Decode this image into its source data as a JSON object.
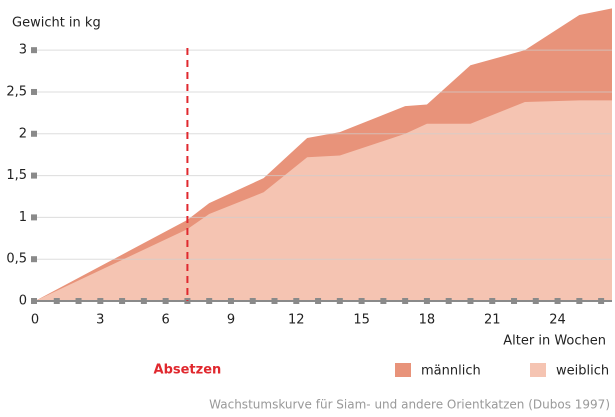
{
  "chart_data": {
    "type": "area",
    "y_label": "Gewicht in kg",
    "x_label": "Alter in Wochen",
    "source": "Wachstumskurve für Siam- und andere Orientkatzen (Dubos 1997)",
    "x": [
      0,
      7,
      8,
      10.5,
      12.5,
      14,
      17,
      18,
      20,
      22.5,
      25,
      26.5
    ],
    "series": [
      {
        "name": "männlich",
        "color": "#e8937a",
        "values": [
          0,
          0.97,
          1.17,
          1.47,
          1.95,
          2.02,
          2.33,
          2.35,
          2.82,
          3.0,
          3.42,
          3.5
        ]
      },
      {
        "name": "weiblich",
        "color": "#f5c4b2",
        "values": [
          0,
          0.86,
          1.04,
          1.3,
          1.72,
          1.74,
          2.0,
          2.12,
          2.12,
          2.38,
          2.4,
          2.4
        ]
      }
    ],
    "xlim": [
      0,
      26.5
    ],
    "ylim": [
      0,
      3.6
    ],
    "xticks": [
      0,
      3,
      6,
      9,
      12,
      15,
      18,
      21,
      24
    ],
    "xminorticks": [
      1,
      2,
      3,
      4,
      5,
      6,
      7,
      8,
      9,
      10,
      11,
      12,
      13,
      14,
      15,
      16,
      17,
      18,
      19,
      20,
      21,
      22,
      23,
      24,
      25,
      26
    ],
    "yticks": [
      0,
      {
        "value": 0.5,
        "label": "0,5"
      },
      1,
      {
        "value": 1.5,
        "label": "1,5"
      },
      2,
      {
        "value": 2.5,
        "label": "2,5"
      },
      3
    ],
    "grid": true,
    "annotation": {
      "x": 7,
      "label": "Absetzen",
      "color": "#e0282e"
    },
    "legend": "bottom-right"
  }
}
